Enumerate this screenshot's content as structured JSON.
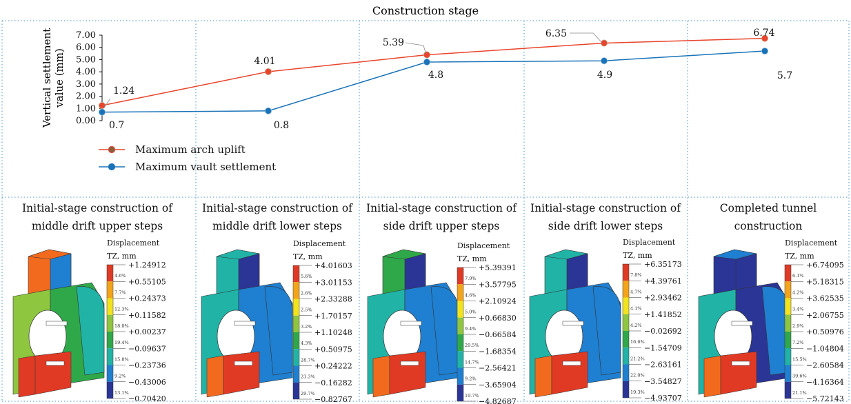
{
  "header": {
    "title": "Construction stage"
  },
  "chart_data": {
    "type": "line",
    "title": "Construction stage",
    "xlabel": "",
    "ylabel": "Vertical settlement value (mm)",
    "ylabel_lines": [
      "Vertical settlement",
      "value (mm)"
    ],
    "ylim": [
      0,
      7
    ],
    "yticks": [
      "0.00",
      "1.00",
      "2.00",
      "3.00",
      "4.00",
      "5.00",
      "6.00",
      "7.00"
    ],
    "categories": [
      "Initial-stage construction of middle drift upper steps",
      "Initial-stage construction of middle drift lower steps",
      "Initial-stage construction of side drift upper steps",
      "Initial-stage construction of side drift lower steps",
      "Completed tunnel construction"
    ],
    "series": [
      {
        "name": "Maximum arch uplift",
        "color": "#e8452c",
        "values": [
          1.24,
          4.01,
          5.39,
          6.35,
          6.74
        ],
        "labels": [
          "1.24",
          "4.01",
          "5.39",
          "6.35",
          "6.74"
        ]
      },
      {
        "name": "Maximum vault settlement",
        "color": "#1a73b8",
        "values": [
          0.7,
          0.8,
          4.8,
          4.9,
          5.7
        ],
        "labels": [
          "0.7",
          "0.8",
          "4.8",
          "4.9",
          "5.7"
        ]
      }
    ],
    "grid": false,
    "legend_position": "bottom-left"
  },
  "panels": [
    {
      "title_lines": [
        "Initial-stage construction of",
        "middle drift upper steps"
      ],
      "legend_title": [
        "Displacement",
        "TZ, mm"
      ],
      "values": [
        "+1.24912",
        "+0.55105",
        "+0.24373",
        "+0.11582",
        "+0.00237",
        "−0.09637",
        "−0.23736",
        "−0.43006",
        "−0.70420"
      ],
      "percents": [
        "4.6%",
        "7.7%",
        "12.3%",
        "18.0%",
        "19.4%",
        "15.8%",
        "9.2%",
        "13.1%"
      ]
    },
    {
      "title_lines": [
        "Initial-stage construction of",
        "middle drift lower steps"
      ],
      "legend_title": [
        "Displacement",
        "TZ, mm"
      ],
      "values": [
        "+4.01603",
        "+3.01153",
        "+2.33288",
        "+1.70157",
        "+1.10248",
        "+0.50975",
        "+0.24222",
        "−0.16282",
        "−0.82767"
      ],
      "percents": [
        "5.6%",
        "2.6%",
        "2.5%",
        "3.2%",
        "4.3%",
        "28.7%",
        "23.3%",
        "29.7%"
      ]
    },
    {
      "title_lines": [
        "Initial-stage construction of",
        "side drift upper steps"
      ],
      "legend_title": [
        "Displacement",
        "TZ, mm"
      ],
      "values": [
        "+5.39391",
        "+3.57795",
        "+2.10924",
        "+0.66830",
        "−0.66584",
        "−1.68354",
        "−2.56421",
        "−3.65904",
        "−4.82687"
      ],
      "percents": [
        "7.9%",
        "4.6%",
        "5.0%",
        "9.4%",
        "29.5%",
        "14.7%",
        "9.2%",
        "19.7%"
      ]
    },
    {
      "title_lines": [
        "Initial-stage construction of",
        "side drift lower steps"
      ],
      "legend_title": [
        "Displacement",
        "TZ, mm"
      ],
      "values": [
        "+6.35173",
        "+4.39761",
        "+2.93462",
        "+1.41852",
        "−0.02692",
        "−1.54709",
        "−2.63161",
        "−3.54827",
        "−4.93707"
      ],
      "percents": [
        "7.8%",
        "4.7%",
        "4.1%",
        "4.2%",
        "16.6%",
        "21.2%",
        "22.0%",
        "19.3%"
      ]
    },
    {
      "title_lines": [
        "Completed tunnel",
        "construction"
      ],
      "legend_title": [
        "Displacement",
        "TZ, mm"
      ],
      "values": [
        "+6.74095",
        "+5.18315",
        "+3.62535",
        "+2.06755",
        "+0.50976",
        "−1.04804",
        "−2.60584",
        "−4.16364",
        "−5.72143"
      ],
      "percents": [
        "6.1%",
        "4.2%",
        "3.4%",
        "2.9%",
        "7.2%",
        "15.5%",
        "39.6%",
        "21.1%"
      ]
    }
  ],
  "colorbar": [
    "#e03a25",
    "#f26a1e",
    "#f4a418",
    "#f2e31c",
    "#8ec63f",
    "#2fa84a",
    "#20b3a6",
    "#1f7fd0",
    "#2b3596"
  ]
}
